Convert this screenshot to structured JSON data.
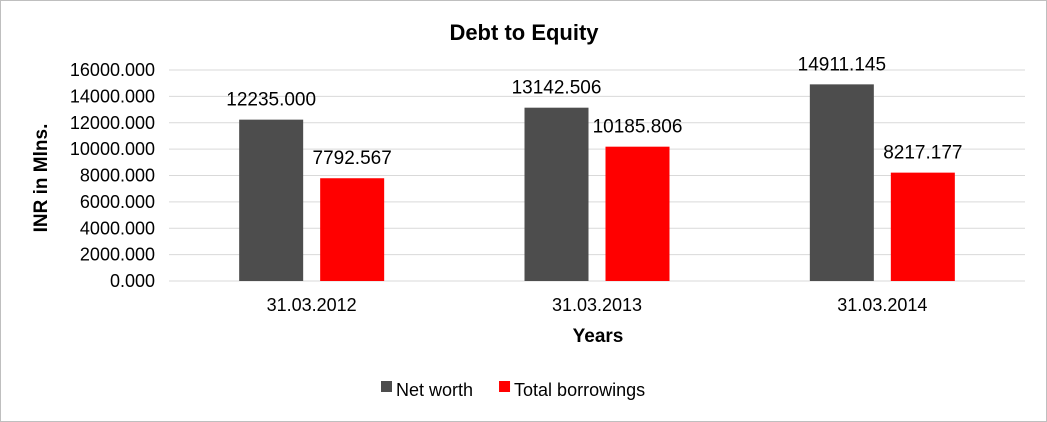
{
  "chart_data": {
    "type": "bar",
    "title": "Debt to Equity",
    "xlabel": "Years",
    "ylabel": "INR in Mlns.",
    "categories": [
      "31.03.2012",
      "31.03.2013",
      "31.03.2014"
    ],
    "series": [
      {
        "name": "Net worth",
        "color": "#4d4d4d",
        "values": [
          12235.0,
          13142.506,
          14911.145
        ],
        "labels": [
          "12235.000",
          "13142.506",
          "14911.145"
        ]
      },
      {
        "name": "Total borrowings",
        "color": "#ff0000",
        "values": [
          7792.567,
          10185.806,
          8217.177
        ],
        "labels": [
          "7792.567",
          "10185.806",
          "8217.177"
        ]
      }
    ],
    "ylim": [
      0,
      16000
    ],
    "yticks": [
      "0.000",
      "2000.000",
      "4000.000",
      "6000.000",
      "8000.000",
      "10000.000",
      "12000.000",
      "14000.000",
      "16000.000"
    ],
    "grid": true,
    "legend_position": "bottom"
  }
}
